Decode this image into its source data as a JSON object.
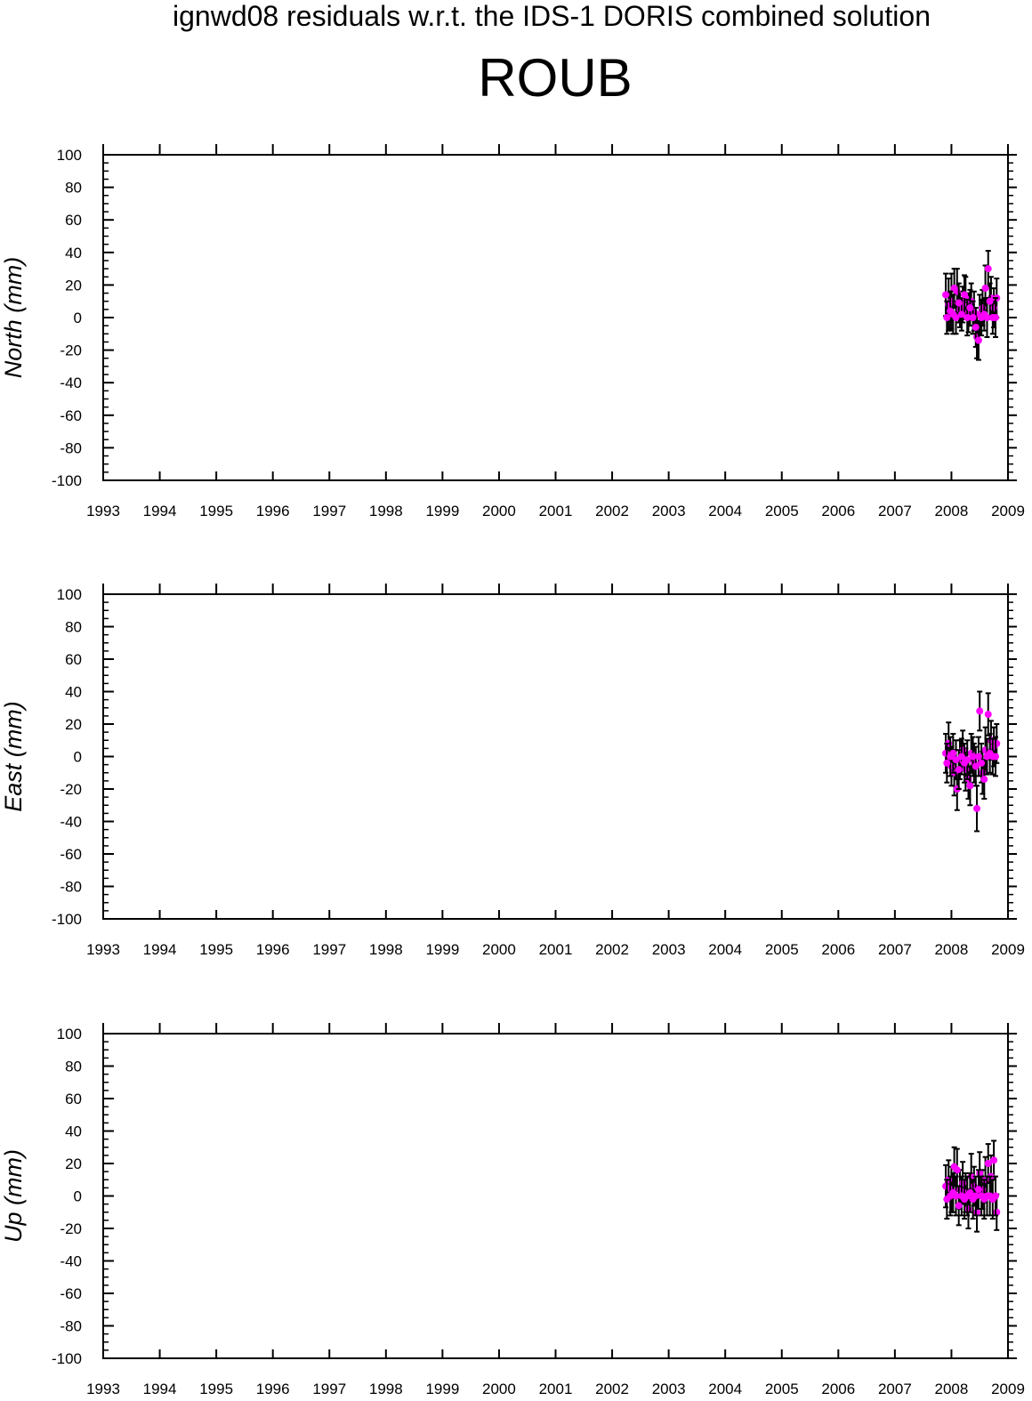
{
  "header": {
    "supertitle": "ignwd08 residuals w.r.t. the IDS-1 DORIS combined solution",
    "station": "ROUB"
  },
  "colors": {
    "axes": "#000000",
    "points": "#ff00ff",
    "error_bars": "#000000",
    "background": "#ffffff"
  },
  "chart_data": [
    {
      "type": "scatter",
      "title": "",
      "xlabel": "",
      "ylabel": "North (mm)",
      "xlim": [
        1993,
        2009
      ],
      "ylim": [
        -100,
        100
      ],
      "x_ticks": [
        "1993",
        "1994",
        "1995",
        "1996",
        "1997",
        "1998",
        "1999",
        "2000",
        "2001",
        "2002",
        "2003",
        "2004",
        "2005",
        "2006",
        "2007",
        "2008",
        "2009"
      ],
      "y_ticks": [
        "100",
        "80",
        "60",
        "40",
        "20",
        "0",
        "-20",
        "-40",
        "-60",
        "-80",
        "-100"
      ],
      "grid": false,
      "series": [
        {
          "markers": "magenta filled circles with black error bars",
          "x": [
            2007.9,
            2007.95,
            2008.0,
            2008.05,
            2008.1,
            2008.15,
            2008.2,
            2008.25,
            2008.3,
            2008.35,
            2008.4,
            2008.45,
            2008.5,
            2008.55,
            2008.6,
            2008.65,
            2008.7,
            2008.75,
            2008.8
          ],
          "y": [
            14,
            8,
            10,
            18,
            16,
            5,
            8,
            12,
            3,
            10,
            4,
            -12,
            2,
            6,
            18,
            30,
            12,
            6,
            12
          ],
          "err": [
            13,
            16,
            17,
            12,
            14,
            11,
            11,
            13,
            12,
            11,
            12,
            13,
            12,
            11,
            14,
            11,
            13,
            12,
            12
          ]
        },
        {
          "x": [
            2007.92,
            2007.98,
            2008.03,
            2008.08,
            2008.13,
            2008.18,
            2008.23,
            2008.28,
            2008.33,
            2008.38,
            2008.43,
            2008.48,
            2008.53,
            2008.58,
            2008.63,
            2008.68,
            2008.73,
            2008.78
          ],
          "y": [
            0,
            4,
            2,
            0,
            9,
            2,
            14,
            0,
            6,
            0,
            -6,
            -14,
            0,
            2,
            0,
            10,
            0,
            0
          ],
          "err": [
            10,
            12,
            12,
            10,
            12,
            10,
            12,
            11,
            11,
            10,
            12,
            12,
            11,
            10,
            12,
            11,
            10,
            12
          ]
        }
      ]
    },
    {
      "type": "scatter",
      "title": "",
      "xlabel": "",
      "ylabel": "East (mm)",
      "xlim": [
        1993,
        2009
      ],
      "ylim": [
        -100,
        100
      ],
      "x_ticks": [
        "1993",
        "1994",
        "1995",
        "1996",
        "1997",
        "1998",
        "1999",
        "2000",
        "2001",
        "2002",
        "2003",
        "2004",
        "2005",
        "2006",
        "2007",
        "2008",
        "2009"
      ],
      "y_ticks": [
        "100",
        "80",
        "60",
        "40",
        "20",
        "0",
        "-20",
        "-40",
        "-60",
        "-80",
        "-100"
      ],
      "grid": false,
      "series": [
        {
          "markers": "magenta filled circles with black error bars",
          "x": [
            2007.9,
            2007.95,
            2008.0,
            2008.05,
            2008.1,
            2008.15,
            2008.2,
            2008.25,
            2008.3,
            2008.35,
            2008.4,
            2008.45,
            2008.5,
            2008.55,
            2008.6,
            2008.65,
            2008.7,
            2008.75,
            2008.8
          ],
          "y": [
            2,
            8,
            -6,
            -10,
            -20,
            -2,
            4,
            -8,
            -14,
            2,
            -4,
            -32,
            28,
            -10,
            4,
            26,
            10,
            6,
            8
          ],
          "err": [
            12,
            13,
            12,
            14,
            13,
            12,
            12,
            13,
            12,
            12,
            12,
            14,
            12,
            13,
            14,
            13,
            12,
            12,
            12
          ]
        },
        {
          "x": [
            2007.92,
            2007.98,
            2008.03,
            2008.08,
            2008.13,
            2008.18,
            2008.23,
            2008.28,
            2008.33,
            2008.38,
            2008.43,
            2008.48,
            2008.53,
            2008.58,
            2008.63,
            2008.68,
            2008.73,
            2008.78
          ],
          "y": [
            -4,
            0,
            2,
            -2,
            -8,
            0,
            -4,
            -2,
            -18,
            0,
            -6,
            0,
            -4,
            -14,
            0,
            2,
            0,
            0
          ],
          "err": [
            12,
            12,
            12,
            12,
            12,
            11,
            12,
            12,
            12,
            12,
            12,
            12,
            12,
            12,
            11,
            12,
            11,
            12
          ]
        }
      ]
    },
    {
      "type": "scatter",
      "title": "",
      "xlabel": "",
      "ylabel": "Up (mm)",
      "xlim": [
        1993,
        2009
      ],
      "ylim": [
        -100,
        100
      ],
      "x_ticks": [
        "1993",
        "1994",
        "1995",
        "1996",
        "1997",
        "1998",
        "1999",
        "2000",
        "2001",
        "2002",
        "2003",
        "2004",
        "2005",
        "2006",
        "2007",
        "2008",
        "2009"
      ],
      "y_ticks": [
        "100",
        "80",
        "60",
        "40",
        "20",
        "0",
        "-20",
        "-40",
        "-60",
        "-80",
        "-100"
      ],
      "grid": false,
      "series": [
        {
          "markers": "magenta filled circles with black error bars",
          "x": [
            2007.9,
            2007.95,
            2008.0,
            2008.05,
            2008.1,
            2008.15,
            2008.2,
            2008.25,
            2008.3,
            2008.35,
            2008.4,
            2008.45,
            2008.5,
            2008.55,
            2008.6,
            2008.65,
            2008.7,
            2008.75,
            2008.8
          ],
          "y": [
            6,
            10,
            4,
            18,
            16,
            4,
            8,
            2,
            -8,
            12,
            6,
            -10,
            14,
            4,
            10,
            20,
            12,
            22,
            -10
          ],
          "err": [
            13,
            12,
            14,
            12,
            13,
            12,
            13,
            12,
            12,
            14,
            12,
            12,
            13,
            12,
            14,
            12,
            13,
            12,
            11
          ]
        },
        {
          "x": [
            2007.92,
            2007.98,
            2008.03,
            2008.08,
            2008.13,
            2008.18,
            2008.23,
            2008.28,
            2008.33,
            2008.38,
            2008.43,
            2008.48,
            2008.53,
            2008.58,
            2008.63,
            2008.68,
            2008.73,
            2008.78
          ],
          "y": [
            -2,
            0,
            2,
            0,
            -6,
            0,
            -2,
            0,
            2,
            -2,
            0,
            4,
            0,
            -2,
            0,
            0,
            -2,
            0
          ],
          "err": [
            12,
            12,
            12,
            12,
            12,
            12,
            12,
            12,
            12,
            12,
            12,
            12,
            12,
            12,
            12,
            12,
            12,
            12
          ]
        }
      ]
    }
  ]
}
